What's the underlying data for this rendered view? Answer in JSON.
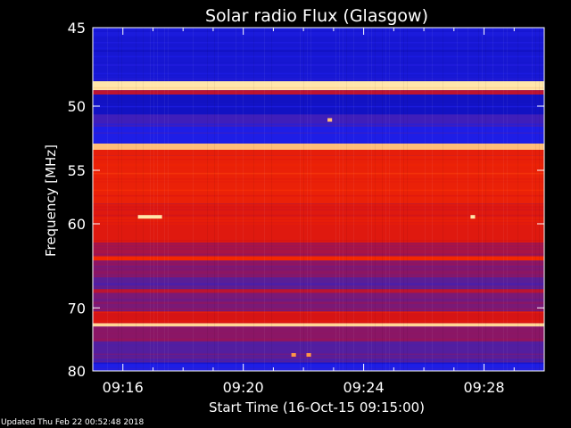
{
  "chart_data": {
    "type": "heatmap",
    "title": "Solar radio Flux (Glasgow)",
    "xlabel": "Start Time (16-Oct-15 09:15:00)",
    "ylabel": "Frequency [MHz]",
    "x_ticks": [
      "09:16",
      "09:20",
      "09:24",
      "09:28"
    ],
    "x_tick_minutes": [
      16,
      20,
      24,
      28
    ],
    "xlim_minutes": [
      15,
      30.0
    ],
    "y_ticks": [
      45,
      50,
      55,
      60,
      70,
      80
    ],
    "ylim": [
      45,
      80
    ],
    "y_scale": "reciprocal",
    "colormap": "red-temperature",
    "colors": {
      "background": "#000000",
      "low": "#1a1adc",
      "mid": "#9a1050",
      "high": "#f01000",
      "peak": "#ffd880"
    },
    "bands": [
      {
        "f0": 45.0,
        "f1": 45.5,
        "level": 0.1
      },
      {
        "f0": 45.5,
        "f1": 48.3,
        "level": 0.08
      },
      {
        "f0": 48.3,
        "f1": 48.9,
        "level": 1.0
      },
      {
        "f0": 48.9,
        "f1": 49.2,
        "level": 0.55
      },
      {
        "f0": 49.2,
        "f1": 50.6,
        "level": 0.05
      },
      {
        "f0": 50.6,
        "f1": 51.5,
        "level": 0.22
      },
      {
        "f0": 51.5,
        "f1": 52.8,
        "level": 0.12
      },
      {
        "f0": 52.8,
        "f1": 53.3,
        "level": 0.95
      },
      {
        "f0": 53.3,
        "f1": 53.8,
        "level": 0.7
      },
      {
        "f0": 53.8,
        "f1": 58.0,
        "level": 0.72
      },
      {
        "f0": 58.0,
        "f1": 62.0,
        "level": 0.66
      },
      {
        "f0": 62.0,
        "f1": 63.5,
        "level": 0.5
      },
      {
        "f0": 63.5,
        "f1": 64.0,
        "level": 0.78
      },
      {
        "f0": 64.0,
        "f1": 66.0,
        "level": 0.42
      },
      {
        "f0": 66.0,
        "f1": 67.5,
        "level": 0.3
      },
      {
        "f0": 67.5,
        "f1": 68.0,
        "level": 0.55
      },
      {
        "f0": 68.0,
        "f1": 70.5,
        "level": 0.38
      },
      {
        "f0": 70.5,
        "f1": 72.2,
        "level": 0.62
      },
      {
        "f0": 72.2,
        "f1": 72.7,
        "level": 0.98
      },
      {
        "f0": 72.7,
        "f1": 75.0,
        "level": 0.42
      },
      {
        "f0": 75.0,
        "f1": 78.5,
        "level": 0.28
      },
      {
        "f0": 78.5,
        "f1": 80.0,
        "level": 0.12
      }
    ],
    "events": [
      {
        "t0": 16.5,
        "t1": 17.3,
        "f": 59.3,
        "level": 1.0
      },
      {
        "t0": 27.55,
        "t1": 27.7,
        "f": 59.3,
        "level": 1.0
      },
      {
        "t0": 22.8,
        "t1": 22.95,
        "f": 51.0,
        "level": 0.95
      },
      {
        "t0": 21.6,
        "t1": 21.75,
        "f": 77.2,
        "level": 0.9
      },
      {
        "t0": 22.1,
        "t1": 22.25,
        "f": 77.2,
        "level": 0.9
      }
    ]
  },
  "footer": "Updated Thu Feb 22 00:52:48 2018"
}
